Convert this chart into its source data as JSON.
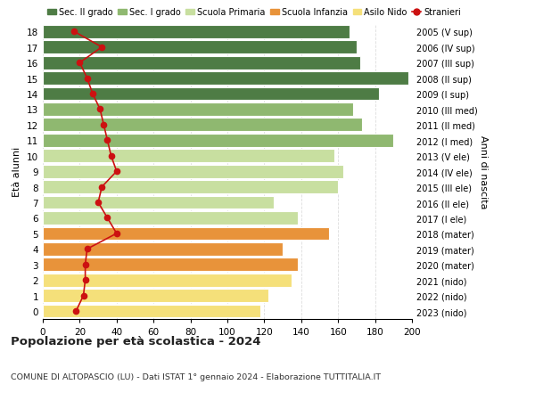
{
  "ages": [
    0,
    1,
    2,
    3,
    4,
    5,
    6,
    7,
    8,
    9,
    10,
    11,
    12,
    13,
    14,
    15,
    16,
    17,
    18
  ],
  "bar_values": [
    118,
    122,
    135,
    138,
    130,
    155,
    138,
    125,
    160,
    163,
    158,
    190,
    173,
    168,
    182,
    198,
    172,
    170,
    166
  ],
  "bar_colors": [
    "#f5e07a",
    "#f5e07a",
    "#f5e07a",
    "#e8933a",
    "#e8933a",
    "#e8933a",
    "#c8dfa0",
    "#c8dfa0",
    "#c8dfa0",
    "#c8dfa0",
    "#c8dfa0",
    "#8fb870",
    "#8fb870",
    "#8fb870",
    "#4e7c45",
    "#4e7c45",
    "#4e7c45",
    "#4e7c45",
    "#4e7c45"
  ],
  "stranieri_values": [
    18,
    22,
    23,
    23,
    24,
    40,
    35,
    30,
    32,
    40,
    37,
    35,
    33,
    31,
    27,
    24,
    20,
    32,
    17
  ],
  "right_labels": [
    "2023 (nido)",
    "2022 (nido)",
    "2021 (nido)",
    "2020 (mater)",
    "2019 (mater)",
    "2018 (mater)",
    "2017 (I ele)",
    "2016 (II ele)",
    "2015 (III ele)",
    "2014 (IV ele)",
    "2013 (V ele)",
    "2012 (I med)",
    "2011 (II med)",
    "2010 (III med)",
    "2009 (I sup)",
    "2008 (II sup)",
    "2007 (III sup)",
    "2006 (IV sup)",
    "2005 (V sup)"
  ],
  "legend_labels": [
    "Sec. II grado",
    "Sec. I grado",
    "Scuola Primaria",
    "Scuola Infanzia",
    "Asilo Nido",
    "Stranieri"
  ],
  "legend_colors": [
    "#4e7c45",
    "#8fb870",
    "#c8dfa0",
    "#e8933a",
    "#f5e07a",
    "#cc1111"
  ],
  "ylabel": "Età alunni",
  "ylabel_right": "Anni di nascita",
  "title": "Popolazione per età scolastica - 2024",
  "subtitle": "COMUNE DI ALTOPASCIO (LU) - Dati ISTAT 1° gennaio 2024 - Elaborazione TUTTITALIA.IT",
  "xlim": [
    0,
    200
  ],
  "xticks": [
    0,
    20,
    40,
    60,
    80,
    100,
    120,
    140,
    160,
    180,
    200
  ],
  "grid_color": "#dddddd"
}
